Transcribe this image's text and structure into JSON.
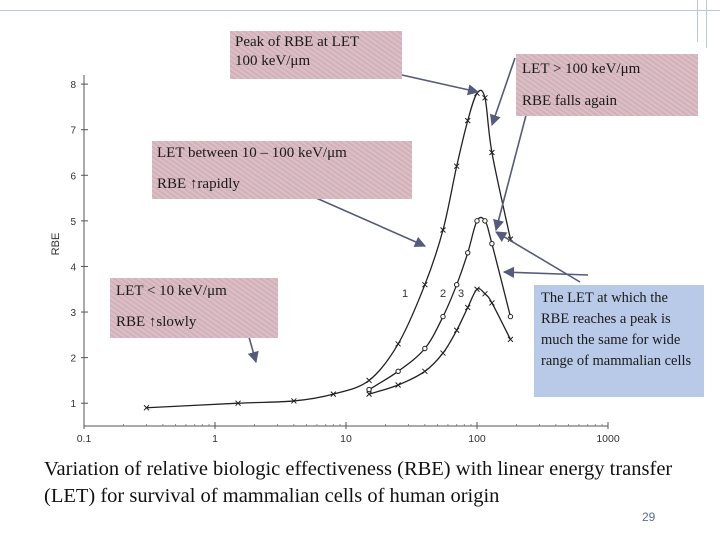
{
  "chart_data": {
    "type": "line",
    "xlabel": "",
    "ylabel": "RBE",
    "xscale": "log",
    "xlim": [
      0.1,
      1000
    ],
    "ylim": [
      0.5,
      8.2
    ],
    "x_ticks": [
      "0.1",
      "1",
      "10",
      "100",
      "1000"
    ],
    "y_ticks": [
      "1",
      "2",
      "3",
      "4",
      "5",
      "6",
      "7",
      "8"
    ],
    "series": [
      {
        "name": "1",
        "marker": "x",
        "x": [
          0.3,
          1.5,
          4,
          8,
          15,
          25,
          40,
          55,
          70,
          85,
          100,
          115,
          130,
          180
        ],
        "y": [
          0.9,
          1.0,
          1.05,
          1.2,
          1.5,
          2.3,
          3.6,
          4.8,
          6.2,
          7.2,
          7.8,
          7.7,
          6.5,
          4.6
        ]
      },
      {
        "name": "2",
        "marker": "o",
        "x": [
          15,
          25,
          40,
          55,
          70,
          85,
          100,
          115,
          130,
          180
        ],
        "y": [
          1.3,
          1.7,
          2.2,
          2.9,
          3.6,
          4.3,
          5.0,
          5.0,
          4.5,
          2.9
        ]
      },
      {
        "name": "3",
        "marker": "x",
        "x": [
          15,
          25,
          40,
          55,
          70,
          85,
          100,
          115,
          130,
          180
        ],
        "y": [
          1.2,
          1.4,
          1.7,
          2.1,
          2.6,
          3.1,
          3.5,
          3.4,
          3.2,
          2.4
        ]
      }
    ]
  },
  "callouts": {
    "peak": {
      "line1": "Peak of RBE at LET",
      "line2": "100 keV/μm"
    },
    "above": {
      "line1": "LET > 100 keV/μm",
      "line2": "RBE  falls again"
    },
    "between": {
      "line1": "LET between 10 – 100 keV/μm",
      "line2": "RBE ↑rapidly"
    },
    "below": {
      "line1": "LET < 10 keV/μm",
      "line2": "RBE ↑slowly"
    },
    "note": {
      "text": "The LET at which the RBE reaches a peak is much the same for wide range of mammalian cells"
    }
  },
  "caption": "Variation of relative biologic effectiveness (RBE) with linear energy transfer (LET) for survival of mammalian cells of human origin",
  "page_number": "29"
}
